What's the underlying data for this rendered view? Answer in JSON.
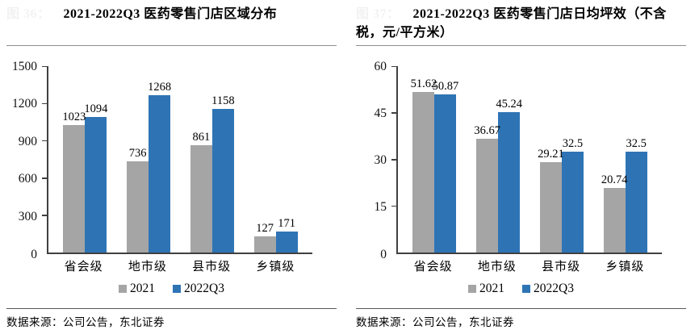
{
  "colors": {
    "series_2021": "#A5A5A5",
    "series_2022q3": "#2E74B5",
    "axis": "#404040",
    "figure_label": "#F2F2F2"
  },
  "source_note": "数据来源：公司公告，东北证券",
  "chart_data": [
    {
      "type": "bar",
      "fig_label": "图 36：",
      "title": "2021-2022Q3 医药零售门店区域分布",
      "categories": [
        "省会级",
        "地市级",
        "县市级",
        "乡镇级"
      ],
      "series": [
        {
          "name": "2021",
          "color": "#A5A5A5",
          "values": [
            1023,
            736,
            861,
            127
          ]
        },
        {
          "name": "2022Q3",
          "color": "#2E74B5",
          "values": [
            1094,
            1268,
            1158,
            171
          ]
        }
      ],
      "ylim": [
        0,
        1500
      ],
      "yticks": [
        0,
        300,
        600,
        900,
        1200,
        1500
      ],
      "grid": false,
      "legend_position": "bottom",
      "source": "数据来源：公司公告，东北证券"
    },
    {
      "type": "bar",
      "fig_label": "图 37：",
      "title": "2021-2022Q3 医药零售门店日均坪效（不含税，元/平方米）",
      "categories": [
        "省会级",
        "地市级",
        "县市级",
        "乡镇级"
      ],
      "series": [
        {
          "name": "2021",
          "color": "#A5A5A5",
          "values": [
            51.62,
            36.67,
            29.21,
            20.74
          ]
        },
        {
          "name": "2022Q3",
          "color": "#2E74B5",
          "values": [
            50.87,
            45.24,
            32.5,
            32.5
          ]
        }
      ],
      "ylim": [
        0,
        60
      ],
      "yticks": [
        0,
        15,
        30,
        45,
        60
      ],
      "grid": false,
      "legend_position": "bottom",
      "source": "数据来源：公司公告，东北证券"
    }
  ]
}
